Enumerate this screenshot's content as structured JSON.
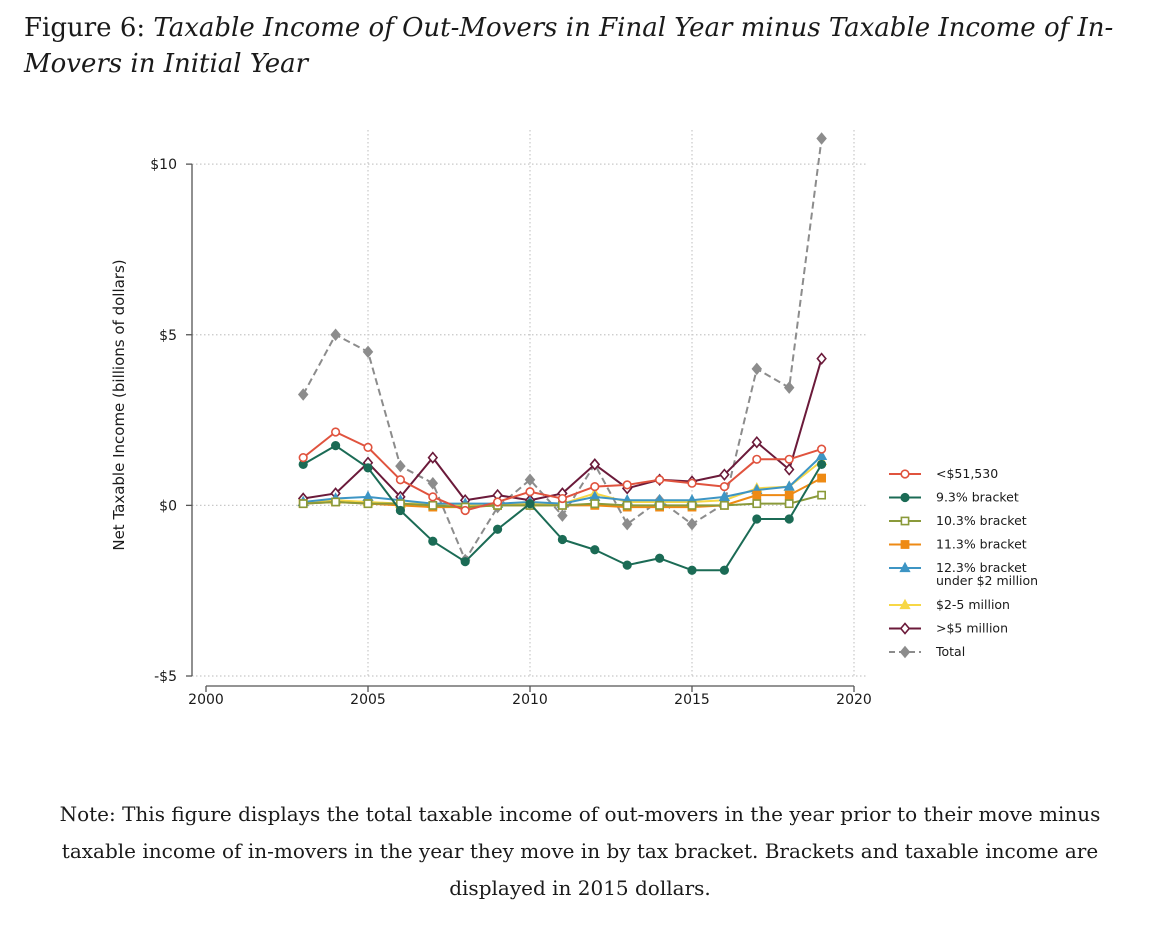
{
  "figure": {
    "label": "Figure 6:",
    "title": "Taxable Income of Out-Movers in Final Year minus Taxable Income of In-Movers in Initial Year"
  },
  "note": "Note: This figure displays the total taxable income of out-movers in the year prior to their move minus taxable income of in-movers in the year they move in by tax bracket. Brackets and taxable income are displayed in 2015 dollars.",
  "chart_data": {
    "type": "line",
    "ylabel": "Net Taxable Income (billions of dollars)",
    "xlabel": "",
    "xlim": [
      2000,
      2020
    ],
    "ylim": [
      -5,
      11
    ],
    "x_ticks": [
      2000,
      2005,
      2010,
      2015,
      2020
    ],
    "y_ticks": [
      {
        "value": -5,
        "label": "-$5"
      },
      {
        "value": 0,
        "label": "$0"
      },
      {
        "value": 5,
        "label": "$5"
      },
      {
        "value": 10,
        "label": "$10"
      }
    ],
    "grid": true,
    "legend_position": "right",
    "x": [
      2003,
      2004,
      2005,
      2006,
      2007,
      2008,
      2009,
      2010,
      2011,
      2012,
      2013,
      2014,
      2015,
      2016,
      2017,
      2018,
      2019
    ],
    "series": [
      {
        "name": "<$51,530",
        "color": "#e0533e",
        "marker": "circle-open",
        "dash": false,
        "values": [
          1.4,
          2.15,
          1.7,
          0.75,
          0.25,
          -0.15,
          0.1,
          0.4,
          0.2,
          0.55,
          0.6,
          0.75,
          0.65,
          0.55,
          1.35,
          1.35,
          1.65
        ]
      },
      {
        "name": "9.3% bracket",
        "color": "#1b6b55",
        "marker": "circle-filled",
        "dash": false,
        "values": [
          1.2,
          1.75,
          1.1,
          -0.15,
          -1.05,
          -1.65,
          -0.7,
          0.05,
          -1.0,
          -1.3,
          -1.75,
          -1.55,
          -1.9,
          -1.9,
          -0.4,
          -0.4,
          1.2
        ]
      },
      {
        "name": "10.3% bracket",
        "color": "#8a9a3a",
        "marker": "square-open",
        "dash": false,
        "values": [
          0.05,
          0.1,
          0.05,
          0.05,
          0.0,
          -0.05,
          0.0,
          0.0,
          0.0,
          0.05,
          0.0,
          0.0,
          0.0,
          0.0,
          0.05,
          0.05,
          0.3
        ]
      },
      {
        "name": "11.3% bracket",
        "color": "#ee8a14",
        "marker": "square-filled",
        "dash": false,
        "values": [
          0.05,
          0.1,
          0.05,
          0.0,
          -0.05,
          -0.05,
          0.0,
          0.0,
          0.0,
          0.0,
          -0.05,
          -0.05,
          -0.05,
          0.0,
          0.3,
          0.3,
          0.8
        ]
      },
      {
        "name": "12.3% bracket under $2 million",
        "color": "#3d95c4",
        "marker": "triangle-filled",
        "dash": false,
        "values": [
          0.1,
          0.2,
          0.25,
          0.15,
          0.05,
          0.05,
          0.05,
          0.1,
          0.05,
          0.25,
          0.15,
          0.15,
          0.15,
          0.25,
          0.45,
          0.55,
          1.45
        ]
      },
      {
        "name": "$2-5 million",
        "color": "#f7d745",
        "marker": "triangle-filled",
        "dash": false,
        "values": [
          0.1,
          0.15,
          0.1,
          0.05,
          0.05,
          0.0,
          0.05,
          0.05,
          0.05,
          0.35,
          0.1,
          0.1,
          0.1,
          0.15,
          0.5,
          0.55,
          1.3
        ]
      },
      {
        "name": ">$5 million",
        "color": "#6b1a3a",
        "marker": "diamond-open",
        "dash": false,
        "values": [
          0.2,
          0.35,
          1.25,
          0.25,
          1.4,
          0.15,
          0.3,
          0.15,
          0.35,
          1.2,
          0.5,
          0.75,
          0.7,
          0.9,
          1.85,
          1.05,
          4.3
        ]
      },
      {
        "name": "Total",
        "color": "#8c8c8c",
        "marker": "diamond-filled",
        "dash": true,
        "values": [
          3.25,
          5.0,
          4.5,
          1.15,
          0.65,
          -1.6,
          -0.05,
          0.75,
          -0.3,
          1.2,
          -0.55,
          0.15,
          -0.55,
          0.05,
          4.0,
          3.45,
          10.75
        ]
      }
    ],
    "legend_labels": [
      [
        "<$51,530"
      ],
      [
        "9.3% bracket"
      ],
      [
        "10.3% bracket"
      ],
      [
        "11.3% bracket"
      ],
      [
        "12.3% bracket",
        "under $2 million"
      ],
      [
        "$2-5 million"
      ],
      [
        ">$5 million"
      ],
      [
        "Total"
      ]
    ]
  }
}
